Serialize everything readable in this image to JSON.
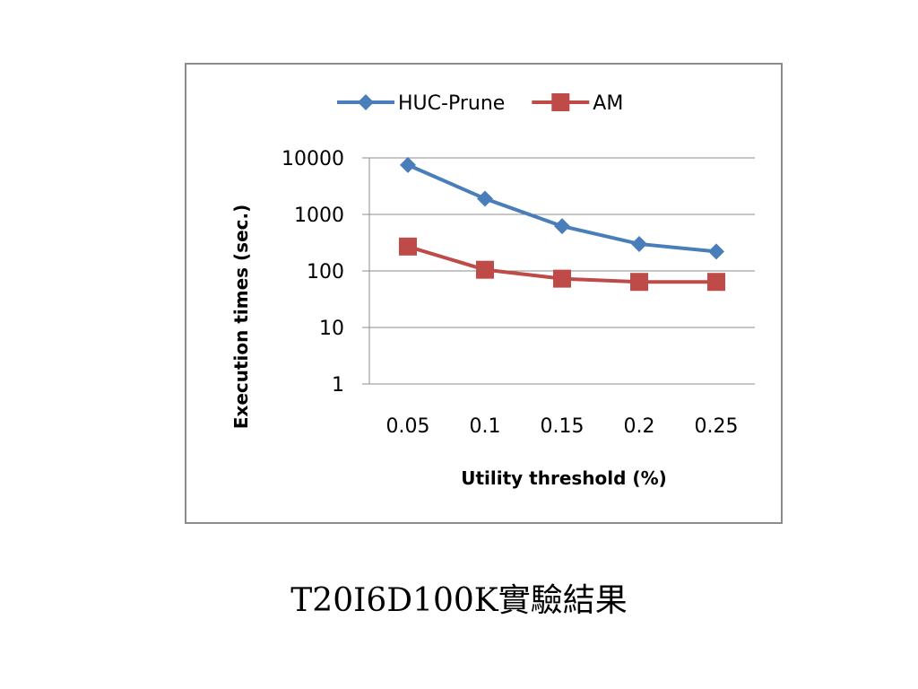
{
  "caption": "T20I6D100K實驗結果",
  "chart_data": {
    "type": "line",
    "title": "",
    "xlabel": "Utility threshold (%)",
    "ylabel": "Execution times (sec.)",
    "categories": [
      "0.05",
      "0.1",
      "0.15",
      "0.2",
      "0.25"
    ],
    "yscale": "log",
    "ylim": [
      1,
      10000
    ],
    "yticks": [
      "1",
      "10",
      "100",
      "1000",
      "10000"
    ],
    "grid": true,
    "legend": "top",
    "series": [
      {
        "name": "HUC-Prune",
        "values": [
          7500,
          1900,
          620,
          300,
          220
        ],
        "color": "#4a7ebb",
        "marker": "diamond"
      },
      {
        "name": "AM",
        "values": [
          270,
          105,
          73,
          64,
          64
        ],
        "color": "#be4b48",
        "marker": "square"
      }
    ]
  }
}
